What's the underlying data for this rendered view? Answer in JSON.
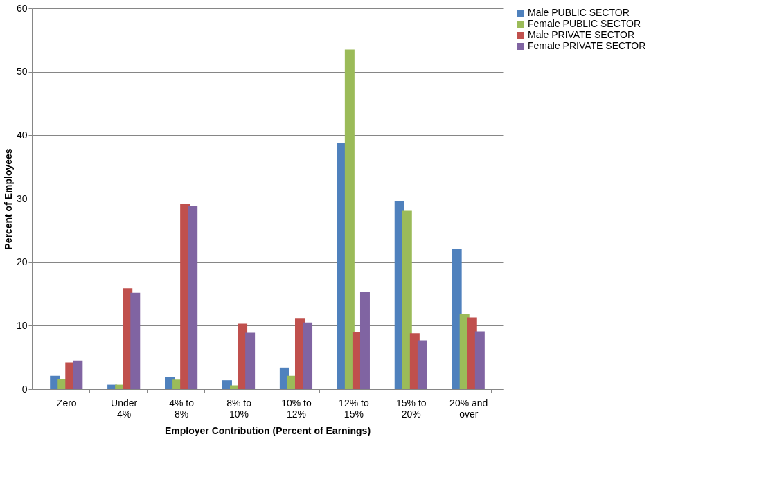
{
  "chart_data": {
    "type": "bar",
    "xlabel": "Employer Contribution (Percent of Earnings)",
    "ylabel": "Percent of Employees",
    "categories": [
      "Zero",
      "Under 4%",
      "4% to 8%",
      "8% to 10%",
      "10% to 12%",
      "12% to 15%",
      "15% to 20%",
      "20% and over"
    ],
    "series": [
      {
        "name": "Male PUBLIC SECTOR",
        "color": "#4f81bd",
        "values": [
          2.1,
          0.7,
          1.9,
          1.4,
          3.4,
          38.8,
          29.6,
          22.1
        ]
      },
      {
        "name": "Female PUBLIC SECTOR",
        "color": "#9bbb59",
        "values": [
          1.6,
          0.7,
          1.5,
          0.6,
          2.1,
          53.5,
          28.1,
          11.8
        ]
      },
      {
        "name": "Male PRIVATE SECTOR",
        "color": "#c0504d",
        "values": [
          4.2,
          15.9,
          29.2,
          10.3,
          11.2,
          9.0,
          8.8,
          11.3
        ]
      },
      {
        "name": "Female PRIVATE SECTOR",
        "color": "#8064a2",
        "values": [
          4.5,
          15.2,
          28.8,
          8.9,
          10.5,
          15.3,
          7.7,
          9.1
        ]
      }
    ],
    "ylim": [
      0,
      60
    ],
    "yticks": [
      0,
      10,
      20,
      30,
      40,
      50,
      60
    ],
    "grid": "y",
    "legend": "right"
  }
}
